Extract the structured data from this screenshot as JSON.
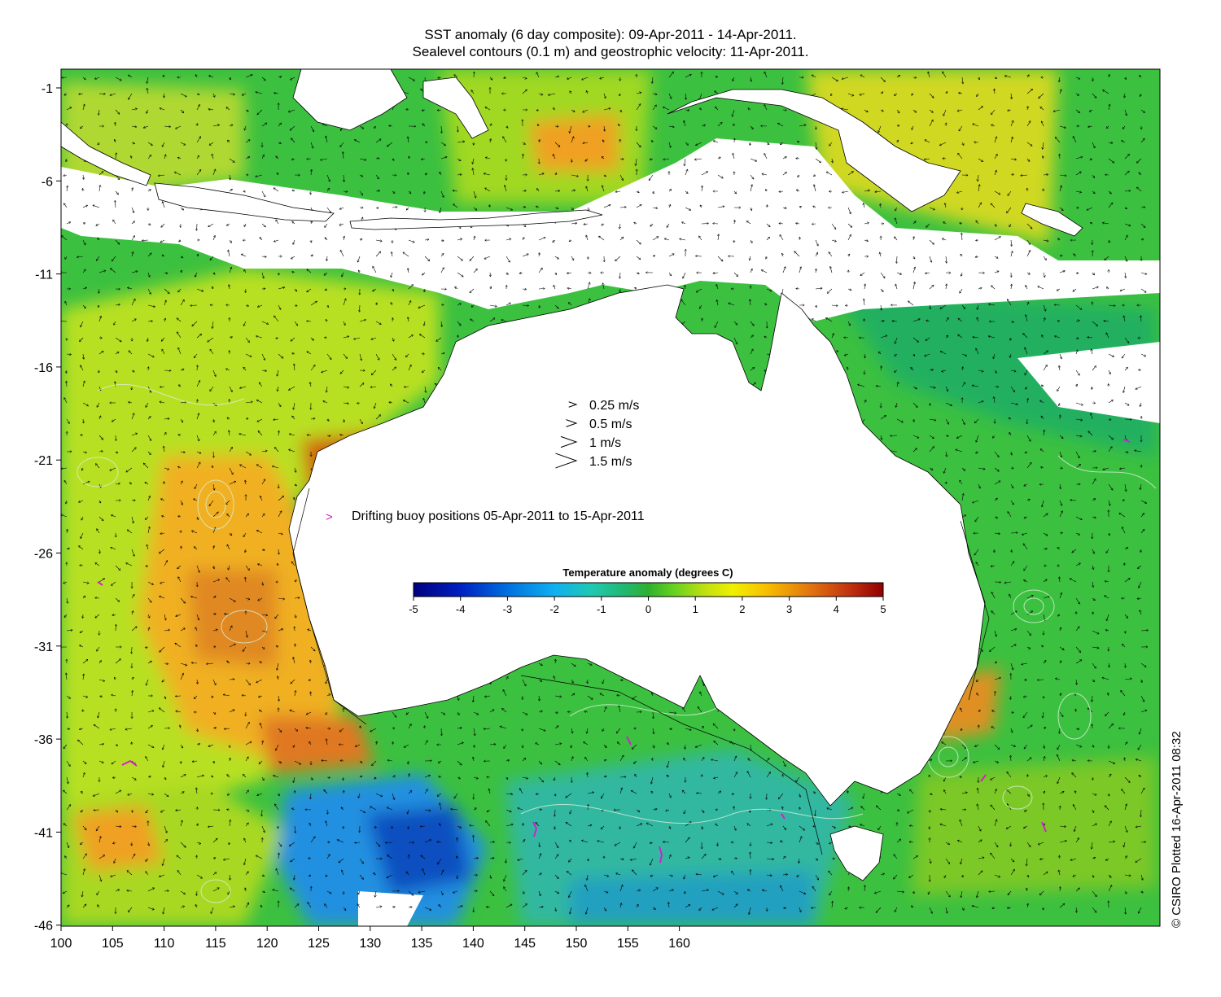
{
  "title_line1": "SST anomaly (6 day composite): 09-Apr-2011 - 14-Apr-2011.",
  "title_line2": "Sealevel contours (0.1 m) and geostrophic velocity: 11-Apr-2011.",
  "credit": "© CSIRO Plotted 16-Apr-2011 08:32",
  "velocity_legend": [
    {
      "label": "0.25 m/s",
      "speed": 0.25
    },
    {
      "label": "0.5 m/s",
      "speed": 0.5
    },
    {
      "label": "1 m/s",
      "speed": 1
    },
    {
      "label": "1.5 m/s",
      "speed": 1.5
    }
  ],
  "buoy_legend": "Drifting buoy positions 05-Apr-2011 to 15-Apr-2011",
  "colorbar": {
    "title": "Temperature anomaly (degrees C)",
    "min": -5,
    "max": 5,
    "ticks": [
      "-5",
      "-4",
      "-3",
      "-2",
      "-1",
      "0",
      "1",
      "2",
      "3",
      "4",
      "5"
    ]
  },
  "x_ticks": [
    "100",
    "105",
    "110",
    "115",
    "120",
    "125",
    "130",
    "135",
    "140",
    "145",
    "150",
    "155",
    "160"
  ],
  "y_ticks": [
    "-1",
    "-6",
    "-11",
    "-16",
    "-21",
    "-26",
    "-31",
    "-36",
    "-41",
    "-46"
  ],
  "colors": {
    "land": "#ffffff",
    "sst_positive": "#e8a020",
    "sst_neutral": "#3cc040",
    "sst_negative": "#1090d0",
    "buoy": "#d020d0"
  }
}
